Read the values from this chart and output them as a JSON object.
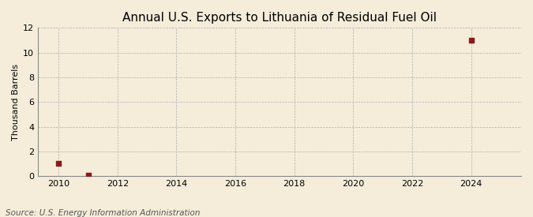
{
  "title": "Annual U.S. Exports to Lithuania of Residual Fuel Oil",
  "ylabel": "Thousand Barrels",
  "source": "Source: U.S. Energy Information Administration",
  "xlim": [
    2009.3,
    2025.7
  ],
  "ylim": [
    0,
    12
  ],
  "yticks": [
    0,
    2,
    4,
    6,
    8,
    10,
    12
  ],
  "xticks": [
    2010,
    2012,
    2014,
    2016,
    2018,
    2020,
    2022,
    2024
  ],
  "data_years": [
    2010,
    2011,
    2024
  ],
  "data_values": [
    1,
    0.05,
    11
  ],
  "marker_color": "#8B1A1A",
  "marker_size": 4,
  "bg_color": "#F5EDDA",
  "grid_color": "#AAAAAA",
  "title_fontsize": 11,
  "label_fontsize": 8,
  "tick_fontsize": 8,
  "source_fontsize": 7.5
}
